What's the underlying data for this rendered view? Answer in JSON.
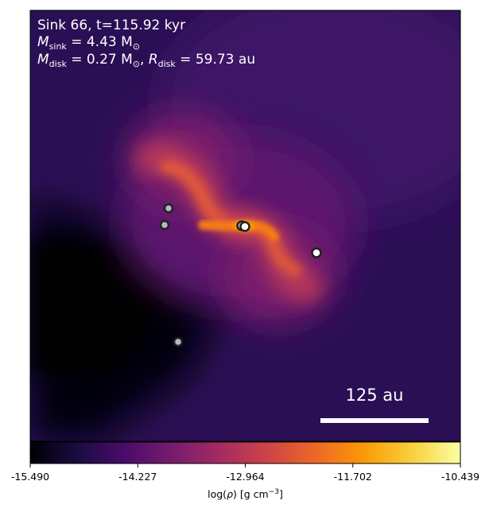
{
  "annotation": {
    "line1": "Sink 66, t=115.92 kyr",
    "line2_symbol": "M",
    "line2_sub": "sink",
    "line2_rest": " = 4.43 M",
    "line2_sun": "⊙",
    "line3_m": "M",
    "line3_msub": "disk",
    "line3_mrest": " = 0.27 M",
    "line3_sun": "⊙",
    "line3_sep": ", ",
    "line3_r": "R",
    "line3_rsub": "disk",
    "line3_rrest": " = 59.73 au"
  },
  "scale_bar": {
    "label": "125 au"
  },
  "colorbar": {
    "label": "log(ρ) [g cm⁻³]",
    "label_prefix": "log(",
    "label_rho": "ρ",
    "label_mid": ") [g cm",
    "label_exp": "−3",
    "label_suffix": "]",
    "ticks": [
      "-15.490",
      "-14.227",
      "-12.964",
      "-11.702",
      "-10.439"
    ],
    "colormap": "inferno",
    "stops": [
      "#000004",
      "#1b0c41",
      "#4a0c6b",
      "#781c6d",
      "#a52c60",
      "#cf4446",
      "#ed6925",
      "#fb9b06",
      "#f7d13d",
      "#fcffa4"
    ]
  },
  "colors": {
    "background": "#2c0f55",
    "sink_fill_light": "#b8b8c0",
    "sink_fill_white": "#ffffff",
    "sink_stroke": "#202020"
  },
  "sinks": [
    {
      "name": "sink-upper-left",
      "style": "light"
    },
    {
      "name": "sink-left",
      "style": "light"
    },
    {
      "name": "sink-center-a",
      "style": "light"
    },
    {
      "name": "sink-center-b",
      "style": "white"
    },
    {
      "name": "sink-right",
      "style": "white"
    },
    {
      "name": "sink-lower",
      "style": "light"
    }
  ]
}
